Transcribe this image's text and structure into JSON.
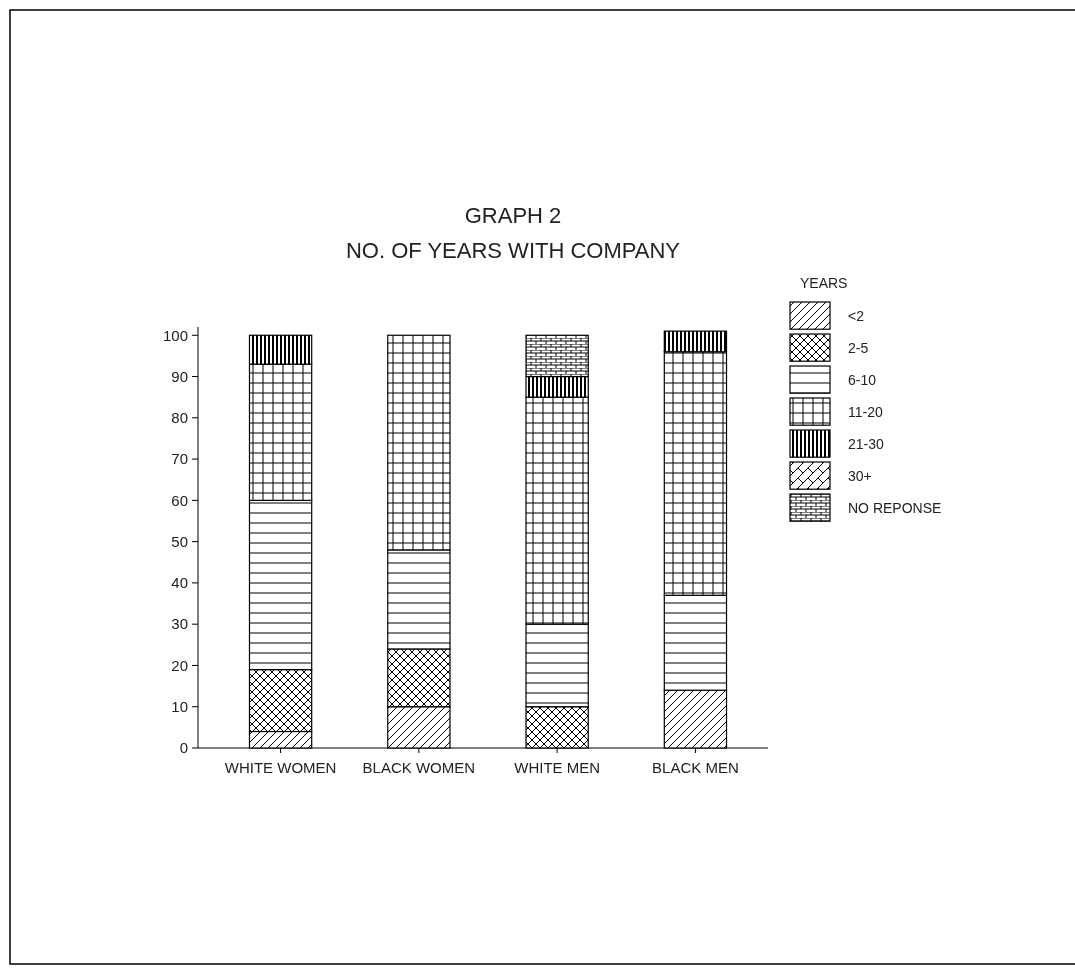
{
  "chart_data": {
    "type": "bar",
    "title": "GRAPH 2",
    "subtitle": "NO. OF YEARS WITH COMPANY",
    "legend_title": "YEARS",
    "stacked": true,
    "legend": "top right",
    "categories": [
      "WHITE WOMEN",
      "BLACK WOMEN",
      "WHITE MEN",
      "BLACK MEN"
    ],
    "ylim": [
      0,
      102
    ],
    "yticks": [
      0,
      10,
      20,
      30,
      40,
      50,
      60,
      70,
      80,
      90,
      100
    ],
    "series": [
      {
        "name": "<2",
        "color": "#000000",
        "values": [
          4,
          10,
          0,
          14
        ]
      },
      {
        "name": "2-5",
        "color": "#000000",
        "values": [
          15,
          14,
          10,
          0
        ]
      },
      {
        "name": "6-10",
        "color": "#000000",
        "values": [
          41,
          24,
          20,
          23
        ]
      },
      {
        "name": "11-20",
        "color": "#000000",
        "values": [
          33,
          52,
          55,
          59
        ]
      },
      {
        "name": "21-30",
        "color": "#000000",
        "values": [
          7,
          0,
          5,
          5
        ]
      },
      {
        "name": "30+",
        "color": "#000000",
        "values": [
          0,
          0,
          0,
          0
        ]
      },
      {
        "name": "NO REPONSE",
        "color": "#000000",
        "values": [
          0,
          0,
          10,
          0
        ]
      }
    ]
  }
}
